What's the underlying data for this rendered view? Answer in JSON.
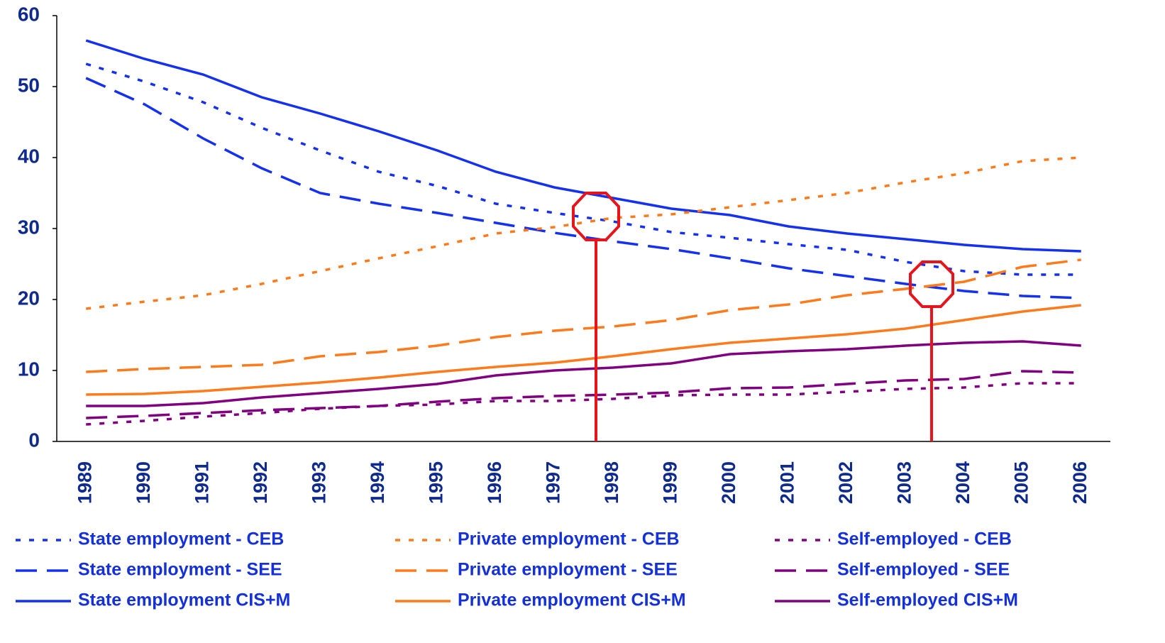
{
  "chart_data": {
    "type": "line",
    "categories": [
      "1989",
      "1990",
      "1991",
      "1992",
      "1993",
      "1994",
      "1995",
      "1996",
      "1997",
      "1998",
      "1999",
      "2000",
      "2001",
      "2002",
      "2003",
      "2004",
      "2005",
      "2006"
    ],
    "ylim": [
      0,
      60
    ],
    "yticks": [
      0,
      10,
      20,
      30,
      40,
      50,
      60
    ],
    "grid": false,
    "series": [
      {
        "name": "State employment - CEB",
        "color": "#1430f0",
        "dash": "dotted",
        "values": [
          53.2,
          50.7,
          47.8,
          44.2,
          41,
          38,
          36,
          33.5,
          32.2,
          31,
          29.5,
          28.7,
          27.8,
          27,
          25.3,
          24,
          23.5,
          23.5
        ]
      },
      {
        "name": "State employment - SEE",
        "color": "#1430f0",
        "dash": "dashed",
        "values": [
          51.2,
          47.5,
          42.7,
          38.5,
          35,
          33.5,
          32.2,
          30.8,
          29.4,
          28.2,
          27.1,
          25.8,
          24.4,
          23.3,
          22.2,
          21.2,
          20.5,
          20.2
        ]
      },
      {
        "name": "State employment CIS+M",
        "color": "#1430f0",
        "dash": "solid",
        "values": [
          56.5,
          53.9,
          51.7,
          48.5,
          46.2,
          43.7,
          41,
          38,
          35.8,
          34.3,
          32.8,
          31.9,
          30.3,
          29.3,
          28.5,
          27.7,
          27.1,
          26.8
        ]
      },
      {
        "name": "Private employment - CEB",
        "color": "#ff7a1a",
        "dash": "dotted",
        "values": [
          18.7,
          19.7,
          20.6,
          22.2,
          24,
          25.8,
          27.5,
          29.3,
          30.2,
          31.5,
          32,
          33,
          34,
          35,
          36.5,
          37.8,
          39.5,
          40
        ]
      },
      {
        "name": "Private employment - SEE",
        "color": "#ff7a1a",
        "dash": "dashed",
        "values": [
          9.8,
          10.2,
          10.5,
          10.8,
          12,
          12.6,
          13.5,
          14.7,
          15.6,
          16.2,
          17.1,
          18.5,
          19.3,
          20.6,
          21.5,
          22.5,
          24.6,
          25.6
        ]
      },
      {
        "name": "Private employment CIS+M",
        "color": "#ff7a1a",
        "dash": "solid",
        "values": [
          6.6,
          6.7,
          7.1,
          7.7,
          8.3,
          9,
          9.8,
          10.5,
          11.1,
          12,
          13,
          13.9,
          14.5,
          15.1,
          15.9,
          17.1,
          18.3,
          19.2
        ]
      },
      {
        "name": "Self-employed - CEB",
        "color": "#800080",
        "dash": "dotted",
        "values": [
          2.4,
          2.9,
          3.5,
          4,
          4.6,
          5,
          5.2,
          5.7,
          5.7,
          6,
          6.5,
          6.6,
          6.6,
          7,
          7.4,
          7.6,
          8.2,
          8.2
        ]
      },
      {
        "name": "Self-employed - SEE",
        "color": "#800080",
        "dash": "dashed",
        "values": [
          3.3,
          3.6,
          4,
          4.4,
          4.7,
          5,
          5.6,
          6.1,
          6.4,
          6.6,
          6.9,
          7.5,
          7.6,
          8.1,
          8.6,
          8.8,
          9.9,
          9.7
        ]
      },
      {
        "name": "Self-employed CIS+M",
        "color": "#800080",
        "dash": "solid",
        "values": [
          5,
          5,
          5.4,
          6.2,
          6.8,
          7.4,
          8.1,
          9.3,
          10,
          10.4,
          11,
          12.3,
          12.7,
          13,
          13.5,
          13.9,
          14.1,
          13.5
        ]
      }
    ]
  }
}
